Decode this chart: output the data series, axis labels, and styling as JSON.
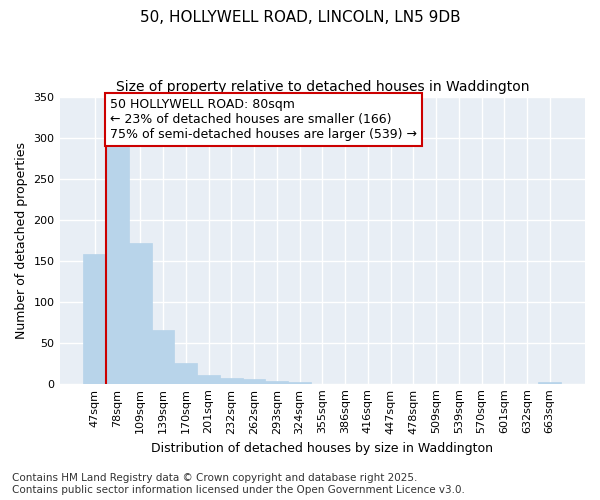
{
  "title_line1": "50, HOLLYWELL ROAD, LINCOLN, LN5 9DB",
  "title_line2": "Size of property relative to detached houses in Waddington",
  "xlabel": "Distribution of detached houses by size in Waddington",
  "ylabel": "Number of detached properties",
  "categories": [
    "47sqm",
    "78sqm",
    "109sqm",
    "139sqm",
    "170sqm",
    "201sqm",
    "232sqm",
    "262sqm",
    "293sqm",
    "324sqm",
    "355sqm",
    "386sqm",
    "416sqm",
    "447sqm",
    "478sqm",
    "509sqm",
    "539sqm",
    "570sqm",
    "601sqm",
    "632sqm",
    "663sqm"
  ],
  "values": [
    158,
    289,
    171,
    65,
    25,
    11,
    7,
    6,
    3,
    2,
    0,
    0,
    0,
    0,
    0,
    0,
    0,
    0,
    0,
    0,
    2
  ],
  "bar_color": "#b8d4ea",
  "bar_edge_color": "#b8d4ea",
  "vline_color": "#cc0000",
  "ylim": [
    0,
    350
  ],
  "yticks": [
    0,
    50,
    100,
    150,
    200,
    250,
    300,
    350
  ],
  "annotation_text": "50 HOLLYWELL ROAD: 80sqm\n← 23% of detached houses are smaller (166)\n75% of semi-detached houses are larger (539) →",
  "annotation_box_facecolor": "#ffffff",
  "annotation_box_edgecolor": "#cc0000",
  "bg_color": "#ffffff",
  "plot_bg_color": "#e8eef5",
  "grid_color": "#ffffff",
  "footer_text": "Contains HM Land Registry data © Crown copyright and database right 2025.\nContains public sector information licensed under the Open Government Licence v3.0.",
  "title_fontsize": 11,
  "subtitle_fontsize": 10,
  "annotation_fontsize": 9,
  "footer_fontsize": 7.5,
  "ylabel_fontsize": 9,
  "xlabel_fontsize": 9,
  "tick_fontsize": 8
}
